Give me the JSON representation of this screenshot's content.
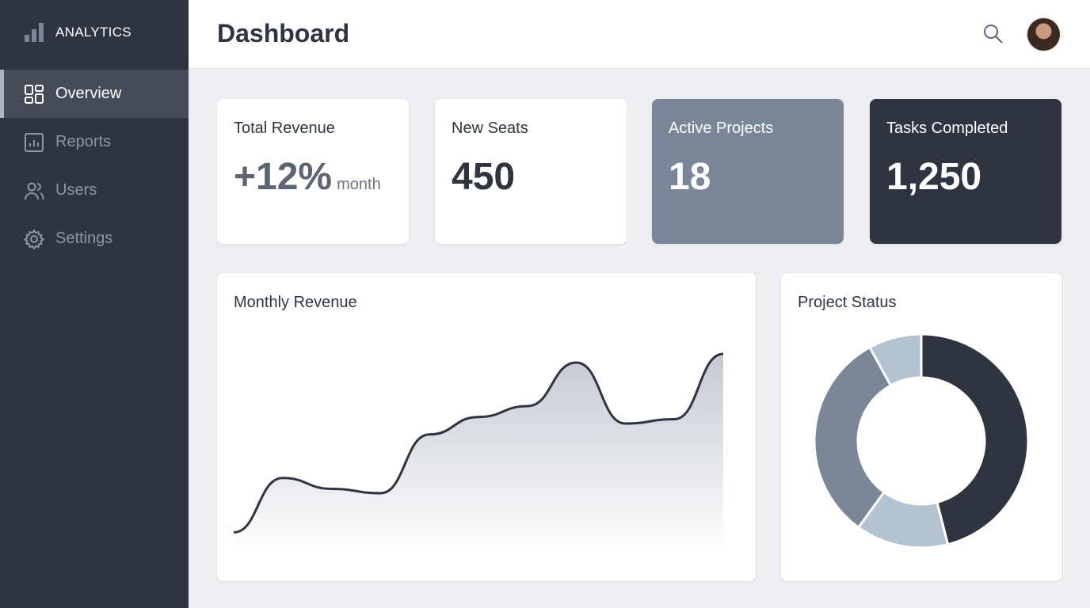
{
  "sidebar": {
    "brand": "ANALYTICS",
    "items": [
      {
        "label": "Overview",
        "icon": "grid-icon",
        "active": true
      },
      {
        "label": "Reports",
        "icon": "report-chart-icon"
      },
      {
        "label": "Users",
        "icon": "users-icon"
      },
      {
        "label": "Settings",
        "icon": "gear-icon"
      }
    ]
  },
  "header": {
    "title": "Dashboard"
  },
  "cards": [
    {
      "label": "Total Revenue",
      "value": "+12%",
      "unit": "month",
      "bg": "#ffffff",
      "fg": "#2e3440"
    },
    {
      "label": "New Seats",
      "value": "450",
      "bg": "#ffffff",
      "fg": "#2e3440"
    },
    {
      "label": "Active Projects",
      "value": "18",
      "bg": "#7b8798",
      "fg": "#ffffff"
    },
    {
      "label": "Tasks Completed",
      "value": "1,250",
      "bg": "#2e3440",
      "fg": "#ffffff"
    }
  ],
  "chart_data": [
    {
      "type": "area",
      "title": "Monthly Revenue",
      "grid": false,
      "legend": "none",
      "x": [
        0,
        1,
        2,
        3,
        4,
        5,
        6,
        7,
        8,
        9,
        10
      ],
      "y": [
        10,
        35,
        30,
        28,
        55,
        63,
        68,
        88,
        60,
        62,
        92
      ],
      "color": "#2e3440"
    },
    {
      "type": "pie",
      "title": "Project Status",
      "donut": true,
      "values": [
        46,
        14,
        32,
        8
      ],
      "colors": [
        "#2e3440",
        "#b4c3d2",
        "#7b8798",
        "#b4c3d2"
      ]
    }
  ]
}
